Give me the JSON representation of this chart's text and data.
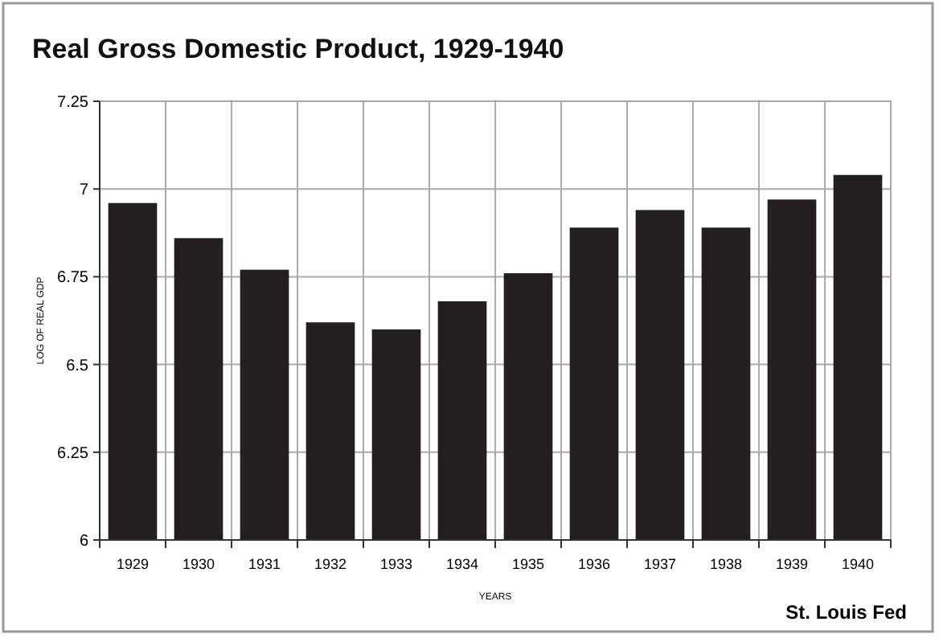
{
  "chart_data": {
    "type": "bar",
    "title": "Real Gross Domestic Product, 1929-1940",
    "xlabel": "YEARS",
    "ylabel": "LOG OF REAL GDP",
    "categories": [
      "1929",
      "1930",
      "1931",
      "1932",
      "1933",
      "1934",
      "1935",
      "1936",
      "1937",
      "1938",
      "1939",
      "1940"
    ],
    "values": [
      6.96,
      6.86,
      6.77,
      6.62,
      6.6,
      6.68,
      6.76,
      6.89,
      6.94,
      6.89,
      6.97,
      7.04
    ],
    "color": "#231f20",
    "ylim": [
      6,
      7.25
    ],
    "yticks": [
      6,
      6.25,
      6.5,
      6.75,
      7,
      7.25
    ],
    "grid": true,
    "annotations": [
      "St. Louis Fed"
    ]
  }
}
